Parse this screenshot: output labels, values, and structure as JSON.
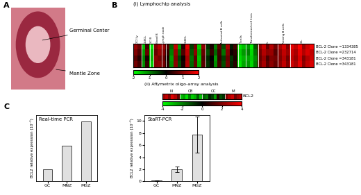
{
  "panel_labels": [
    "A",
    "B",
    "C"
  ],
  "micrograph": {
    "annotations": [
      "Germinal Center",
      "Mantle Zone"
    ]
  },
  "heatmaps": [
    {
      "title": "(i) Lymphochip analysis",
      "column_groups": [
        {
          "label": "OCI Ly",
          "count": 2
        },
        {
          "label": "DLBCL",
          "count": 2
        },
        {
          "label": "GC B",
          "count": 1
        },
        {
          "label": "Blood B",
          "count": 2
        },
        {
          "label": "Lymph node",
          "count": 1
        },
        {
          "label": "DLBCL",
          "count": 10
        },
        {
          "label": "Activated B cells",
          "count": 8
        },
        {
          "label": "T cells",
          "count": 2
        },
        {
          "label": "Transformed cell lines",
          "count": 3
        },
        {
          "label": "FL",
          "count": 5
        },
        {
          "label": "Resting B cells",
          "count": 3
        },
        {
          "label": "CLL",
          "count": 6
        }
      ],
      "row_labels": [
        "BCL-2 Clone =1334385",
        "BCL-2 Clone =232714",
        "BCL-2 Clone =343181",
        "BCL-2 Clone =343181"
      ],
      "cells": [
        [
          1.2,
          0.8,
          -1.5,
          0.5,
          -1.8,
          1.0,
          1.4,
          1.2,
          0.6,
          -0.8,
          1.5,
          -1.2,
          0.3,
          1.8,
          -0.5,
          0.9,
          -1.6,
          1.1,
          -0.4,
          0.2,
          -1.0,
          0.7,
          -0.6,
          1.3,
          -0.2,
          0.5,
          -1.8,
          -1.5,
          -1.2,
          -1.9,
          -0.7,
          1.1,
          1.6,
          0.8,
          1.4,
          0.9,
          1.3,
          1.7,
          1.0,
          1.8,
          1.5,
          2.0,
          1.2,
          1.6,
          1.9
        ],
        [
          1.0,
          0.6,
          -1.2,
          0.8,
          -1.5,
          0.8,
          1.2,
          1.0,
          0.4,
          -1.0,
          1.2,
          -0.8,
          0.6,
          1.5,
          -0.7,
          1.1,
          -1.3,
          0.8,
          -0.6,
          0.4,
          -0.8,
          0.5,
          -0.9,
          1.0,
          0.1,
          0.3,
          -1.6,
          -1.2,
          -1.0,
          -1.7,
          -0.9,
          0.9,
          1.4,
          1.1,
          1.2,
          0.7,
          1.1,
          1.5,
          1.2,
          1.6,
          1.3,
          1.8,
          1.4,
          1.7,
          1.5
        ],
        [
          0.7,
          0.3,
          -1.0,
          0.2,
          -1.4,
          1.1,
          0.9,
          0.8,
          0.2,
          -1.2,
          1.0,
          -0.5,
          0.1,
          1.3,
          -0.9,
          0.7,
          -1.5,
          0.6,
          -0.3,
          0.0,
          -1.2,
          0.4,
          -0.5,
          0.8,
          -0.4,
          0.2,
          -1.7,
          -1.4,
          -1.3,
          -1.6,
          -1.1,
          0.8,
          1.2,
          0.6,
          1.0,
          0.9,
          1.0,
          1.4,
          0.9,
          1.5,
          1.2,
          1.7,
          1.0,
          1.4,
          1.6
        ],
        [
          0.9,
          0.5,
          -1.1,
          0.4,
          -1.6,
          1.0,
          1.1,
          0.9,
          0.3,
          -1.1,
          1.1,
          -0.6,
          0.2,
          1.4,
          -0.8,
          0.8,
          -1.4,
          0.7,
          -0.4,
          0.1,
          -1.1,
          0.5,
          -0.6,
          0.9,
          -0.3,
          0.3,
          -1.8,
          -1.3,
          -1.2,
          -1.7,
          -1.0,
          0.9,
          1.3,
          0.7,
          1.1,
          0.8,
          1.1,
          1.5,
          1.0,
          1.6,
          1.3,
          1.8,
          1.1,
          1.5,
          1.7
        ]
      ],
      "color_range": [
        -2,
        2
      ],
      "color_ticks": [
        -2,
        -1,
        0,
        1,
        2
      ]
    },
    {
      "title": "(ii) Affymetrix oligo-array analysis",
      "column_groups": [
        {
          "label": "N",
          "count": 6
        },
        {
          "label": "CB",
          "count": 8
        },
        {
          "label": "CC",
          "count": 8
        },
        {
          "label": "M",
          "count": 6
        }
      ],
      "row_labels": [
        "BCL2"
      ],
      "cells": [
        [
          2.5,
          3.0,
          2.0,
          3.5,
          2.8,
          1.5,
          -3.0,
          -2.5,
          -3.5,
          -2.0,
          -3.2,
          -2.8,
          -1.5,
          -3.0,
          -1.5,
          -2.0,
          -0.5,
          -1.0,
          -2.5,
          0.5,
          -1.2,
          -0.8,
          2.0,
          2.8,
          3.2,
          1.8,
          2.5,
          3.0
        ]
      ],
      "color_range": [
        -4,
        4
      ],
      "color_ticks": [
        -4,
        -2,
        0,
        2,
        4
      ]
    }
  ],
  "chart_data": [
    {
      "type": "bar",
      "title": "Real-time PCR",
      "y_label": "BCL2 relative expression (10⁻³)",
      "categories": [
        "GC",
        "MNZ",
        "MGZ"
      ],
      "values": [
        0.45,
        1.35,
        2.25
      ],
      "color": "#e0e0e0",
      "ylim": [
        0,
        2.5
      ],
      "yticks": [],
      "tick_labels": "x"
    },
    {
      "type": "bar",
      "title": "StaRT-PCR",
      "y_label": "BCL2 relative expression (10⁻³)",
      "categories": [
        "GC",
        "MNZ",
        "MGZ"
      ],
      "values": [
        0.1,
        2.0,
        7.8
      ],
      "errors": [
        0.05,
        0.5,
        3.0
      ],
      "color": "#e0e0e0",
      "ylim": [
        0,
        11
      ],
      "yticks": [
        0,
        2,
        4,
        6,
        8,
        10
      ]
    }
  ]
}
